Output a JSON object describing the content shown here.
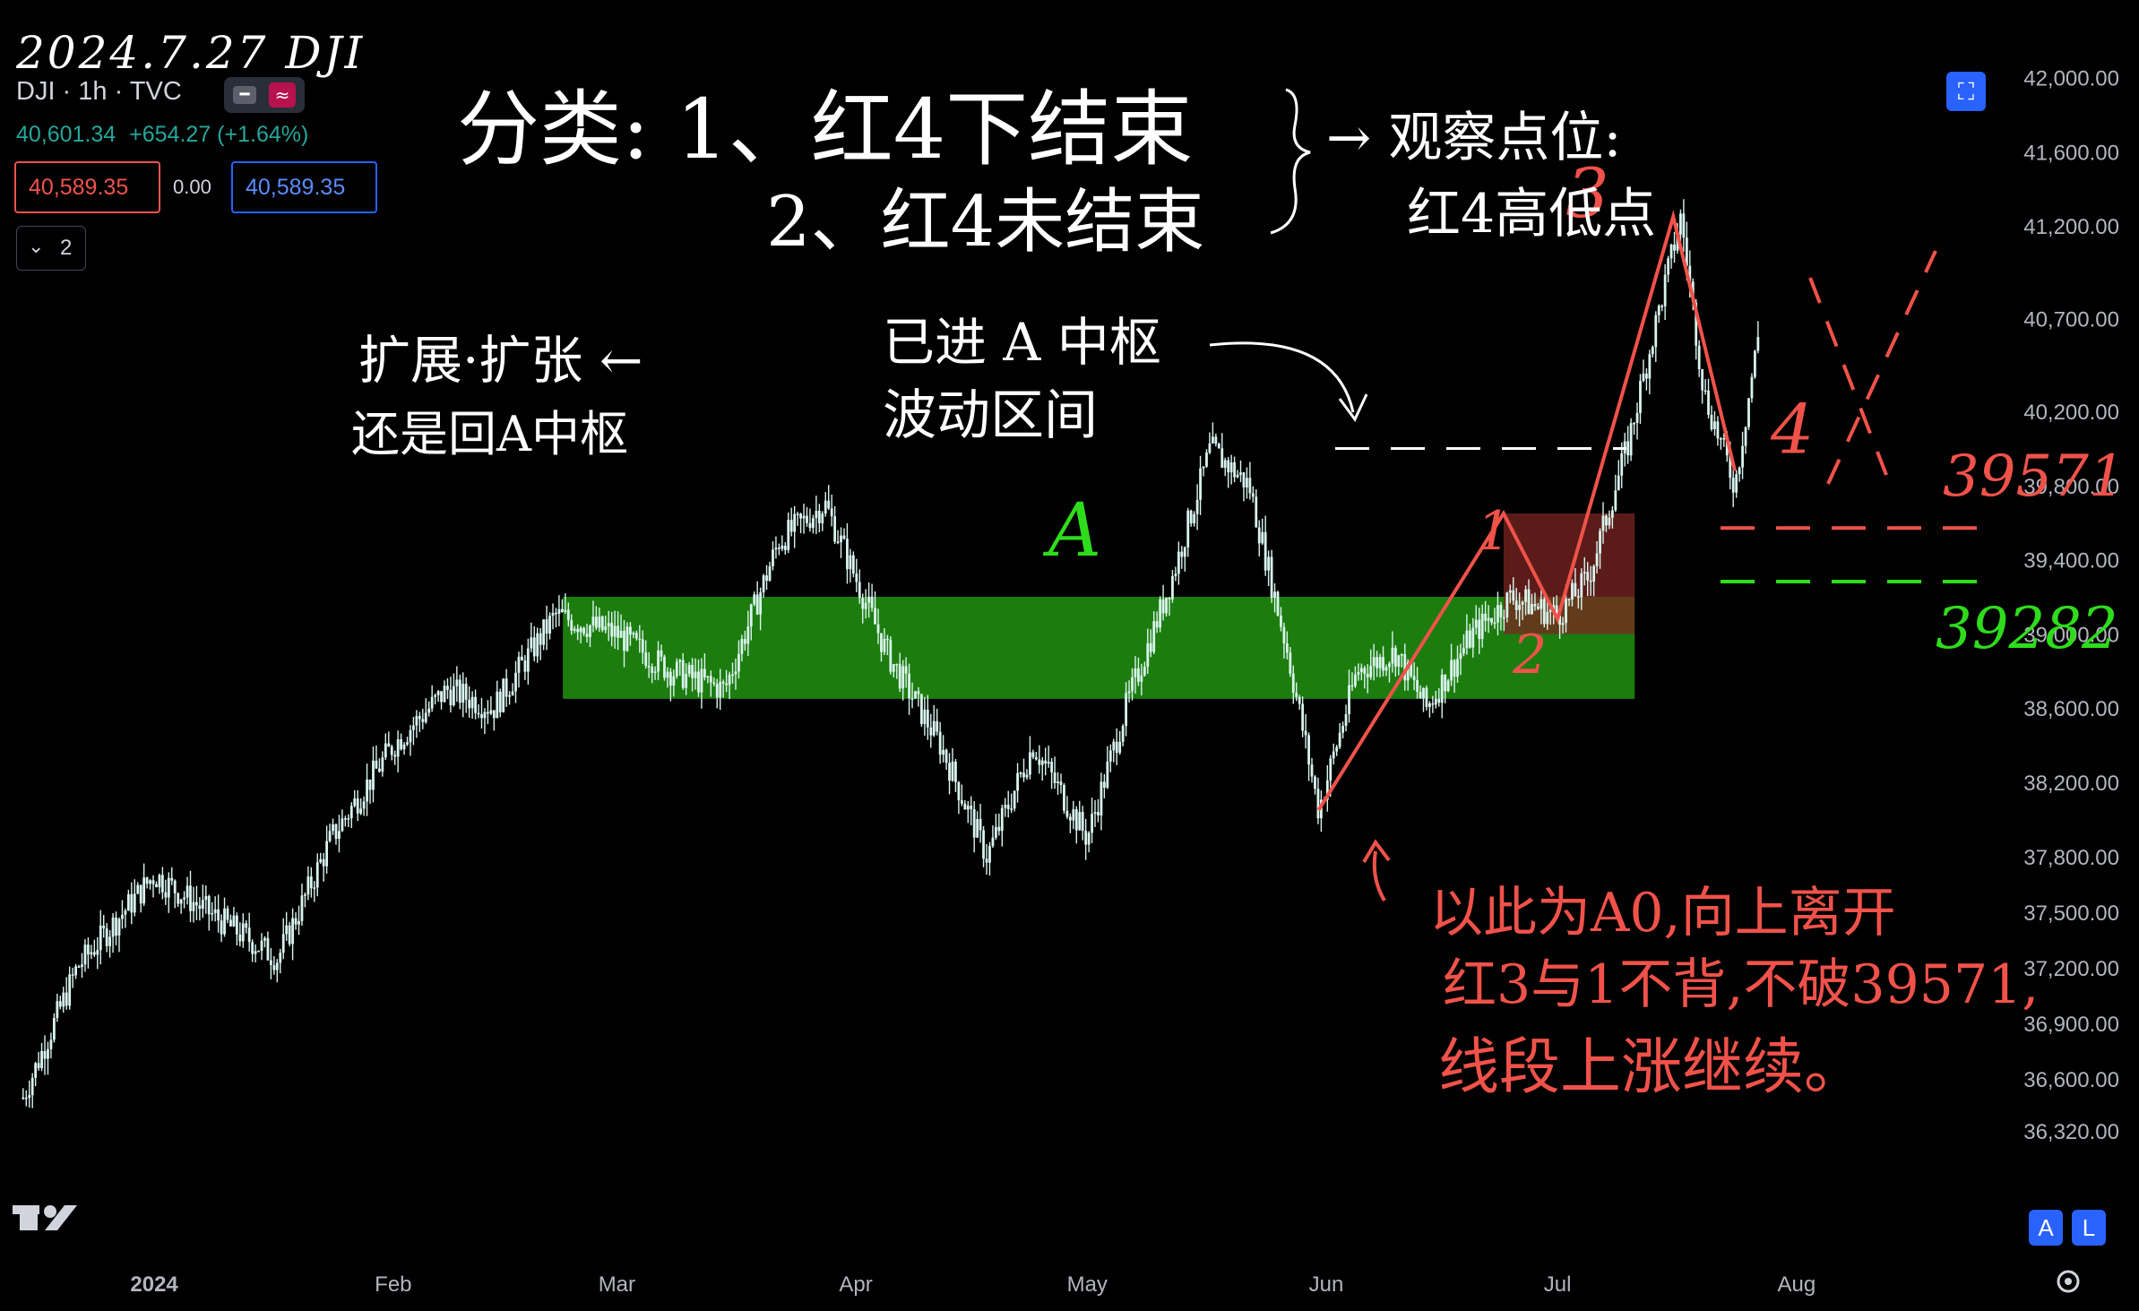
{
  "header": {
    "date_note": "2024.7.27 DJI",
    "symbol": "DJI · 1h · TVC",
    "last_price": "40,601.34",
    "change": "+654.27 (+1.64%)",
    "bid": "40,589.35",
    "spread": "0.00",
    "ask": "40,589.35",
    "indicator_count": "2"
  },
  "annotations": {
    "title_l1": "分类: 1、红4下结束",
    "title_l2": "2、红4未结束",
    "observe_l1": "→ 观察点位:",
    "observe_l2": "红4高低点",
    "expand_l1": "扩展·扩张 ←",
    "expand_l2": "还是回A中枢",
    "entered_l1": "已进 A 中枢",
    "entered_l2": "波动区间",
    "zone_label": "A",
    "wave_1": "1",
    "wave_2": "2",
    "wave_3": "3",
    "wave_4": "4",
    "level_upper": "39571",
    "level_lower": "39282",
    "note_l1": "以此为A0,向上离开",
    "note_l2": "红3与1不背,不破39571,",
    "note_l3": "线段上涨继续。"
  },
  "colors": {
    "background": "#000000",
    "candle": "#d9f4ee",
    "zone_green": "#1f8a0f",
    "zone_red": "#7a2522",
    "wave_red": "#f0524a",
    "level_green": "#2fdc1c",
    "accent_blue": "#2962ff"
  },
  "icons": {
    "fullscreen": "fullscreen-icon",
    "logo": "tradingview-logo-icon",
    "settings": "gear-icon",
    "chevron": "chevron-down-icon"
  },
  "scale_buttons": {
    "auto": "A",
    "log": "L"
  },
  "chart_data": {
    "type": "candlestick",
    "timeframe": "1h",
    "x_labels": [
      "2024",
      "Feb",
      "Mar",
      "Apr",
      "May",
      "Jun",
      "Jul",
      "Aug"
    ],
    "y_ticks": [
      "42,000.00",
      "41,600.00",
      "41,200.00",
      "40,700.00",
      "40,200.00",
      "39,800.00",
      "39,400.00",
      "39,000.00",
      "38,600.00",
      "38,200.00",
      "37,800.00",
      "37,500.00",
      "37,200.00",
      "36,900.00",
      "36,600.00",
      "36,320.00"
    ],
    "ylim": [
      36040,
      42080
    ],
    "series": [
      {
        "name": "",
        "values": [
          {
            "date": "2023-12-15",
            "close": 36500
          },
          {
            "date": "2023-12-22",
            "close": 37200
          },
          {
            "date": "2024-01-01",
            "close": 37700
          },
          {
            "date": "2024-01-08",
            "close": 37500
          },
          {
            "date": "2024-01-17",
            "close": 37250
          },
          {
            "date": "2024-01-24",
            "close": 37900
          },
          {
            "date": "2024-02-01",
            "close": 38400
          },
          {
            "date": "2024-02-08",
            "close": 38700
          },
          {
            "date": "2024-02-14",
            "close": 38600
          },
          {
            "date": "2024-02-22",
            "close": 39100
          },
          {
            "date": "2024-03-01",
            "close": 39000
          },
          {
            "date": "2024-03-08",
            "close": 38800
          },
          {
            "date": "2024-03-15",
            "close": 38700
          },
          {
            "date": "2024-03-22",
            "close": 39500
          },
          {
            "date": "2024-03-28",
            "close": 39700
          },
          {
            "date": "2024-04-05",
            "close": 38900
          },
          {
            "date": "2024-04-12",
            "close": 38400
          },
          {
            "date": "2024-04-18",
            "close": 37800
          },
          {
            "date": "2024-04-24",
            "close": 38400
          },
          {
            "date": "2024-05-01",
            "close": 37900
          },
          {
            "date": "2024-05-06",
            "close": 38600
          },
          {
            "date": "2024-05-12",
            "close": 39300
          },
          {
            "date": "2024-05-17",
            "close": 40000
          },
          {
            "date": "2024-05-22",
            "close": 39800
          },
          {
            "date": "2024-05-27",
            "close": 38900
          },
          {
            "date": "2024-05-31",
            "close": 38050
          },
          {
            "date": "2024-06-05",
            "close": 38800
          },
          {
            "date": "2024-06-10",
            "close": 38900
          },
          {
            "date": "2024-06-14",
            "close": 38600
          },
          {
            "date": "2024-06-20",
            "close": 39000
          },
          {
            "date": "2024-06-25",
            "close": 39200
          },
          {
            "date": "2024-07-01",
            "close": 39100
          },
          {
            "date": "2024-07-05",
            "close": 39300
          },
          {
            "date": "2024-07-10",
            "close": 40000
          },
          {
            "date": "2024-07-15",
            "close": 40900
          },
          {
            "date": "2024-07-17",
            "close": 41250
          },
          {
            "date": "2024-07-20",
            "close": 40300
          },
          {
            "date": "2024-07-24",
            "close": 39800
          },
          {
            "date": "2024-07-27",
            "close": 40600
          }
        ]
      }
    ],
    "zones": [
      {
        "label": "A",
        "x0": "2024-02-23",
        "x1": "2024-07-11",
        "y0": 38650,
        "y1": 39200
      },
      {
        "label": "",
        "x0": "2024-06-24",
        "x1": "2024-07-11",
        "y0": 39000,
        "y1": 39650
      }
    ],
    "levels": [
      {
        "label": "39571",
        "value": 39571
      },
      {
        "label": "39282",
        "value": 39282
      },
      {
        "label": "",
        "value": 40000
      }
    ],
    "waves": [
      {
        "label": "1",
        "date": "2024-06-24",
        "value": 39650
      },
      {
        "label": "2",
        "date": "2024-07-01",
        "value": 39080
      },
      {
        "label": "3",
        "date": "2024-07-16",
        "value": 41250
      },
      {
        "label": "4",
        "date": "2024-07-24",
        "value": 39880
      }
    ],
    "wave_start": {
      "label": "A0",
      "date": "2024-05-31",
      "value": 38050
    }
  }
}
